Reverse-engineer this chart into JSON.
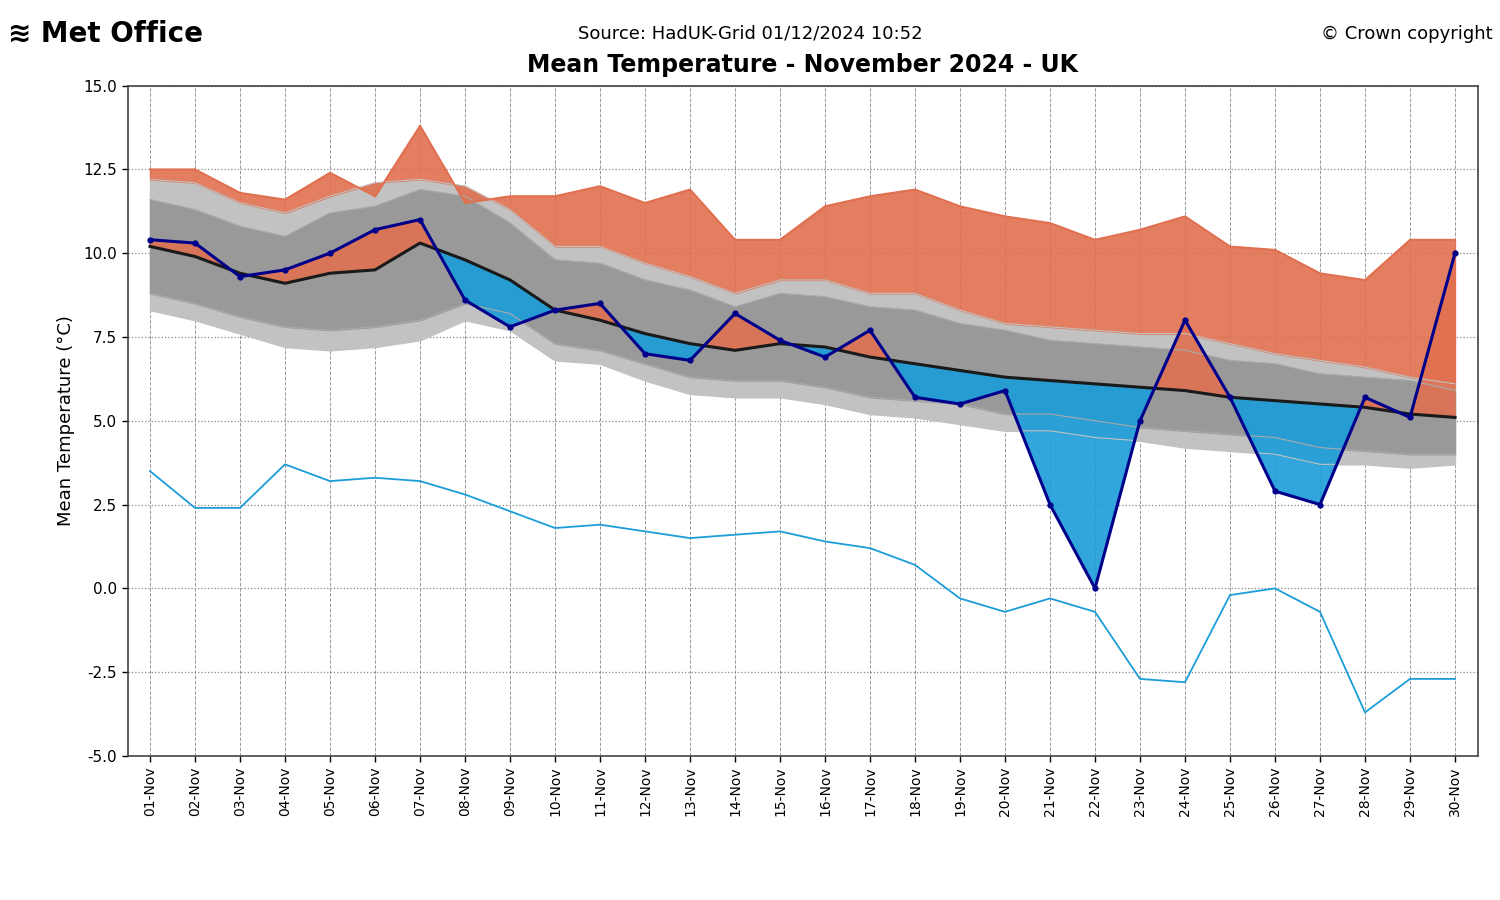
{
  "title": "Mean Temperature - November 2024 - UK",
  "source_text": "Source: HadUK-Grid 01/12/2024 10:52",
  "copyright_text": "© Crown copyright",
  "ylabel": "Mean Temperature (°C)",
  "ylim": [
    -5.0,
    15.0
  ],
  "yticks": [
    -5.0,
    -2.5,
    0.0,
    2.5,
    5.0,
    7.5,
    10.0,
    12.5,
    15.0
  ],
  "dates": [
    "01-Nov",
    "02-Nov",
    "03-Nov",
    "04-Nov",
    "05-Nov",
    "06-Nov",
    "07-Nov",
    "08-Nov",
    "09-Nov",
    "10-Nov",
    "11-Nov",
    "12-Nov",
    "13-Nov",
    "14-Nov",
    "15-Nov",
    "16-Nov",
    "17-Nov",
    "18-Nov",
    "19-Nov",
    "20-Nov",
    "21-Nov",
    "22-Nov",
    "23-Nov",
    "24-Nov",
    "25-Nov",
    "26-Nov",
    "27-Nov",
    "28-Nov",
    "29-Nov",
    "30-Nov"
  ],
  "mean_1991_2020": [
    10.2,
    9.9,
    9.4,
    9.1,
    9.4,
    9.5,
    10.3,
    9.8,
    9.2,
    8.3,
    8.0,
    7.6,
    7.3,
    7.1,
    7.3,
    7.2,
    6.9,
    6.7,
    6.5,
    6.3,
    6.2,
    6.1,
    6.0,
    5.9,
    5.7,
    5.6,
    5.5,
    5.4,
    5.2,
    5.1
  ],
  "lowest": [
    3.5,
    2.4,
    2.4,
    3.7,
    3.2,
    3.3,
    3.2,
    2.8,
    2.3,
    1.8,
    1.9,
    1.7,
    1.5,
    1.6,
    1.7,
    1.4,
    1.2,
    0.7,
    -0.3,
    -0.7,
    -0.3,
    -0.7,
    -2.7,
    -2.8,
    -0.2,
    -0.0,
    -0.7,
    -3.7,
    -2.7,
    -2.7
  ],
  "pct_5": [
    8.3,
    8.0,
    7.6,
    7.2,
    7.1,
    7.2,
    7.4,
    8.0,
    7.7,
    6.8,
    6.7,
    6.2,
    5.8,
    5.7,
    5.7,
    5.5,
    5.2,
    5.1,
    4.9,
    4.7,
    4.7,
    4.5,
    4.4,
    4.2,
    4.1,
    4.0,
    3.7,
    3.7,
    3.6,
    3.7
  ],
  "pct_10": [
    8.8,
    8.5,
    8.1,
    7.8,
    7.7,
    7.8,
    8.0,
    8.5,
    8.2,
    7.3,
    7.1,
    6.7,
    6.3,
    6.2,
    6.2,
    6.0,
    5.7,
    5.6,
    5.5,
    5.2,
    5.2,
    5.0,
    4.8,
    4.7,
    4.6,
    4.5,
    4.2,
    4.1,
    4.0,
    4.0
  ],
  "pct_90": [
    11.6,
    11.3,
    10.8,
    10.5,
    11.2,
    11.4,
    11.9,
    11.7,
    10.9,
    9.8,
    9.7,
    9.2,
    8.9,
    8.4,
    8.8,
    8.7,
    8.4,
    8.3,
    7.9,
    7.7,
    7.4,
    7.3,
    7.2,
    7.1,
    6.8,
    6.7,
    6.4,
    6.3,
    6.2,
    5.9
  ],
  "pct_95": [
    12.2,
    12.1,
    11.5,
    11.2,
    11.7,
    12.1,
    12.2,
    12.0,
    11.3,
    10.2,
    10.2,
    9.7,
    9.3,
    8.8,
    9.2,
    9.2,
    8.8,
    8.8,
    8.3,
    7.9,
    7.8,
    7.7,
    7.6,
    7.6,
    7.3,
    7.0,
    6.8,
    6.6,
    6.3,
    6.1
  ],
  "highest": [
    12.5,
    12.5,
    11.8,
    11.6,
    12.4,
    11.7,
    13.8,
    11.5,
    11.7,
    11.7,
    12.0,
    11.5,
    11.9,
    10.4,
    10.4,
    11.4,
    11.7,
    11.9,
    11.4,
    11.1,
    10.9,
    10.4,
    10.7,
    11.1,
    10.2,
    10.1,
    9.4,
    9.2,
    10.4,
    10.4
  ],
  "val_2024": [
    10.4,
    10.3,
    9.3,
    9.5,
    10.0,
    10.7,
    11.0,
    8.6,
    7.8,
    8.3,
    8.5,
    7.0,
    6.8,
    8.2,
    7.4,
    6.9,
    7.7,
    5.7,
    5.5,
    5.9,
    2.5,
    0.0,
    5.0,
    8.0,
    5.7,
    2.9,
    2.5,
    5.7,
    5.1,
    10.0
  ],
  "color_mean": "#1a1a1a",
  "color_lowest": "#1B9DD9",
  "color_highest": "#E07050",
  "color_2024_line": "#00008B",
  "color_2024_fill_above": "#E07050",
  "color_2024_fill_below": "#1B9DD9",
  "color_pct_5_95_fill": "#C2C2C2",
  "color_pct_10_90_fill": "#999999",
  "color_highest_fill": "#E07050",
  "color_pct_10_line": "#AAAAAA",
  "color_pct_90_line": "#AAAAAA",
  "color_pct_5_line": "#C2C2C2",
  "color_pct_95_line": "#C2C2C2",
  "background_color": "#ffffff"
}
